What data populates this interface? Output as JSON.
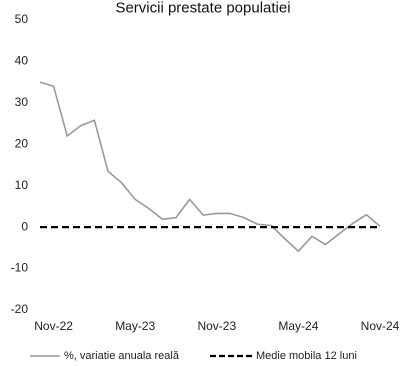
{
  "chart_data": {
    "type": "line",
    "title": "Servicii prestate populatiei",
    "xlabel": "",
    "ylabel": "",
    "ylim": [
      -20,
      50
    ],
    "yticks": [
      -20,
      -10,
      0,
      10,
      20,
      30,
      40,
      50
    ],
    "xtick_labels": [
      "Nov-22",
      "May-23",
      "Nov-23",
      "May-24",
      "Nov-24"
    ],
    "x": [
      "2022-10",
      "2022-11",
      "2022-12",
      "2023-01",
      "2023-02",
      "2023-03",
      "2023-04",
      "2023-05",
      "2023-06",
      "2023-07",
      "2023-08",
      "2023-09",
      "2023-10",
      "2023-11",
      "2023-12",
      "2024-01",
      "2024-02",
      "2024-03",
      "2024-04",
      "2024-05",
      "2024-06",
      "2024-07",
      "2024-08",
      "2024-09",
      "2024-10",
      "2024-11"
    ],
    "grid": false,
    "legend_position": "bottom",
    "series": [
      {
        "name": "%, variatie anuala reală",
        "color": "#999999",
        "style": "solid",
        "values": [
          35,
          34,
          22,
          24.5,
          25.8,
          13.5,
          10.7,
          6.7,
          4.5,
          1.9,
          2.3,
          6.7,
          2.9,
          3.3,
          3.3,
          2.3,
          0.7,
          0.4,
          -2.8,
          -5.8,
          -2.2,
          -4.2,
          -1.6,
          0.9,
          3.0,
          0.2
        ]
      },
      {
        "name": "Medie mobila 12 luni",
        "color": "#000000",
        "style": "dashed",
        "values": [
          0,
          0,
          0,
          0,
          0,
          0,
          0,
          0,
          0,
          0,
          0,
          0,
          0,
          0,
          0,
          0,
          0,
          0,
          0,
          0,
          0,
          0,
          0,
          0,
          0,
          0
        ]
      }
    ]
  }
}
